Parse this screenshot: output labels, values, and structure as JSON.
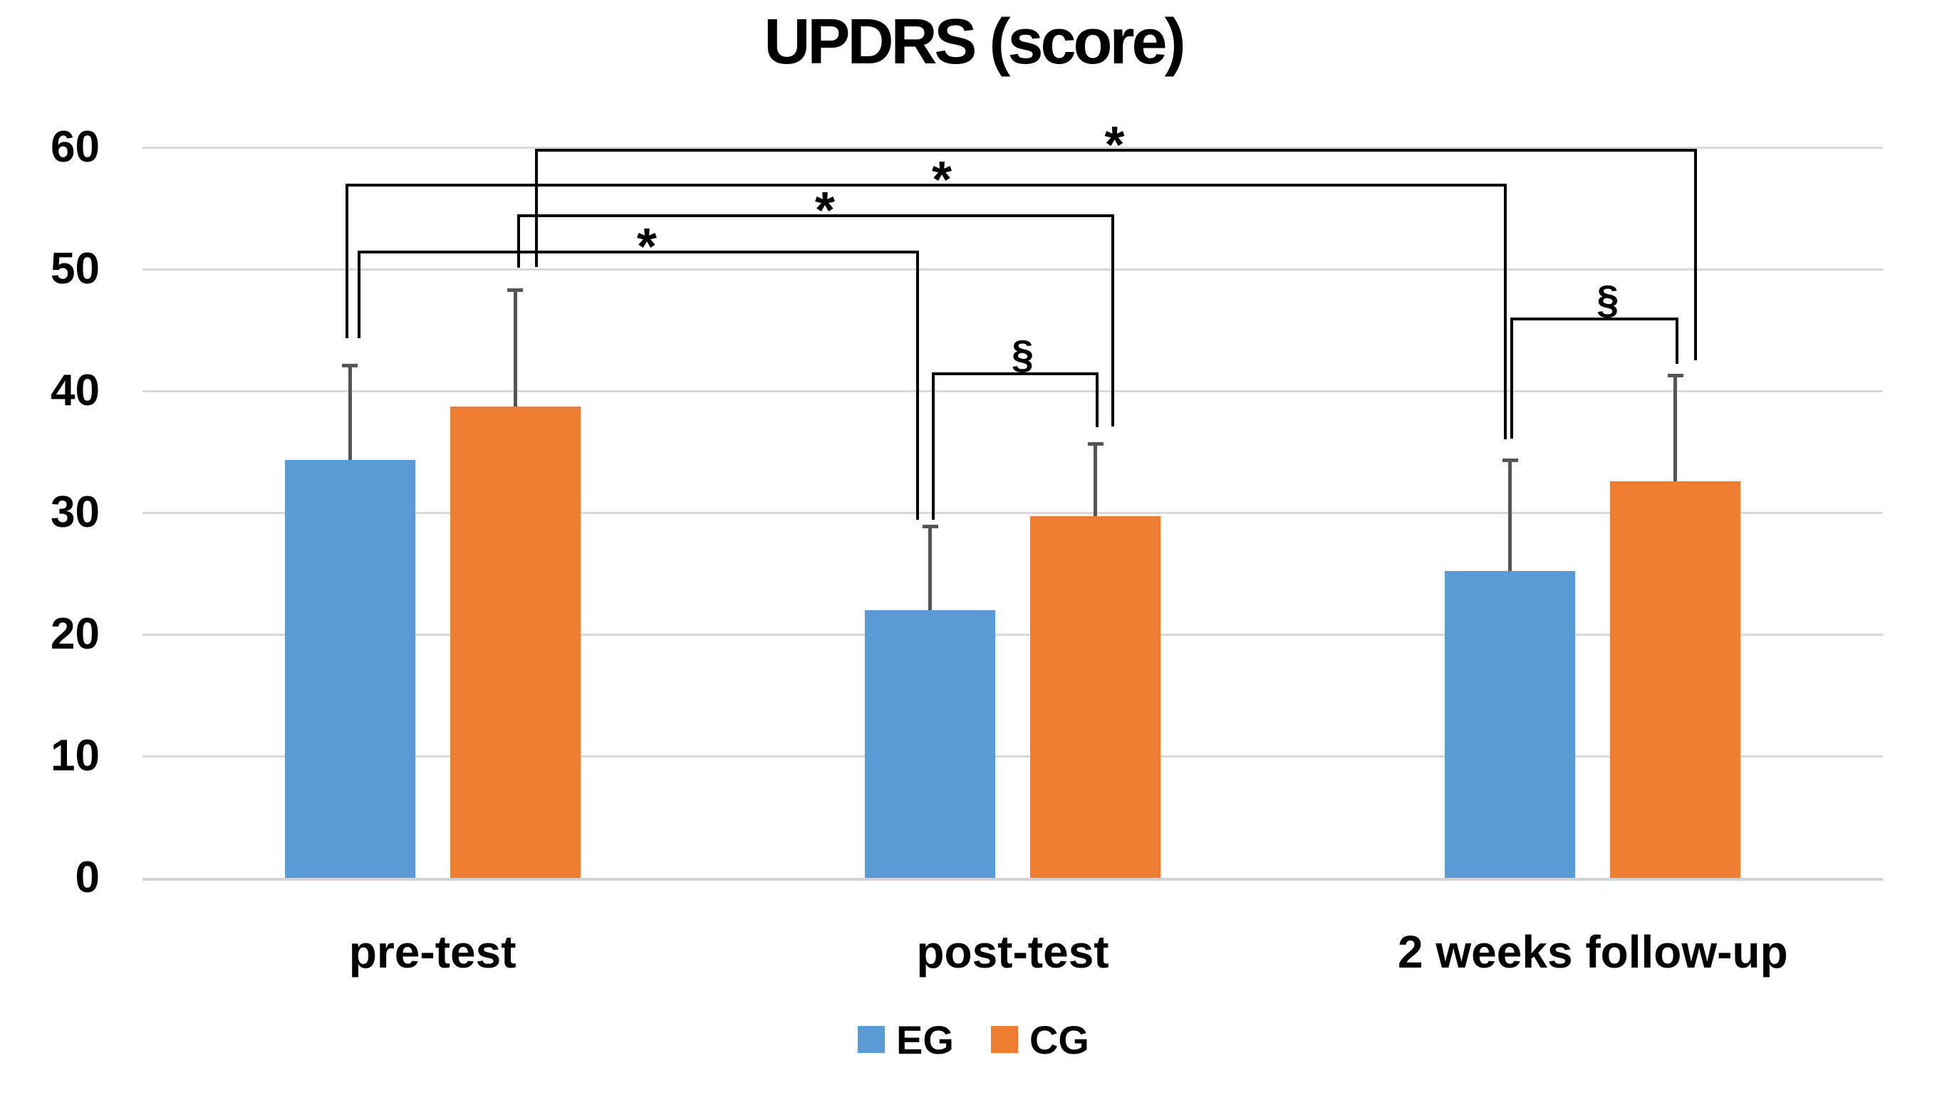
{
  "chart_data": {
    "type": "bar",
    "title": "UPDRS (score)",
    "categories": [
      "pre-test",
      "post-test",
      "2 weeks follow-up"
    ],
    "series": [
      {
        "name": "EG",
        "color": "#5B9BD5",
        "values": [
          34.3,
          22.0,
          25.2
        ],
        "error_up": [
          7.8,
          6.9,
          9.1
        ]
      },
      {
        "name": "CG",
        "color": "#ED7D31",
        "values": [
          38.7,
          29.7,
          32.6
        ],
        "error_up": [
          9.6,
          6.0,
          8.7
        ]
      }
    ],
    "ylim": [
      0,
      60
    ],
    "yticks": [
      0,
      10,
      20,
      30,
      40,
      50,
      60
    ],
    "grid": true,
    "legend_position": "bottom",
    "significance_brackets": [
      {
        "symbol": "*",
        "series": "CG",
        "from": "pre-test",
        "to": "2 weeks follow-up",
        "level": 59.9,
        "drop_left_to": 50.2,
        "drop_right_to": 42.5
      },
      {
        "symbol": "*",
        "series": "EG",
        "from": "pre-test",
        "to": "2 weeks follow-up",
        "level": 57.0,
        "drop_left_to": 44.3,
        "drop_right_to": 36.0
      },
      {
        "symbol": "*",
        "series": "CG",
        "from": "pre-test",
        "to": "post-test",
        "level": 54.5,
        "drop_left_to": 50.1,
        "drop_right_to": 37.1
      },
      {
        "symbol": "*",
        "series": "EG",
        "from": "pre-test",
        "to": "post-test",
        "level": 51.5,
        "drop_left_to": 44.3,
        "drop_right_to": 29.4
      },
      {
        "symbol": "§",
        "within": "post-test",
        "between": [
          "EG",
          "CG"
        ],
        "level": 41.5,
        "drop_left_to": 29.4,
        "drop_right_to": 37.0
      },
      {
        "symbol": "§",
        "within": "2 weeks follow-up",
        "between": [
          "EG",
          "CG"
        ],
        "level": 46.0,
        "drop_left_to": 36.1,
        "drop_right_to": 42.2
      }
    ],
    "colors": {
      "grid": "#D9D9D9",
      "baseline": "#D2D2D2",
      "error_bar": "#555555",
      "bracket": "#000000",
      "text": "#000000"
    }
  },
  "legend": {
    "items": [
      {
        "label": "EG",
        "color": "#5B9BD5"
      },
      {
        "label": "CG",
        "color": "#ED7D31"
      }
    ]
  }
}
